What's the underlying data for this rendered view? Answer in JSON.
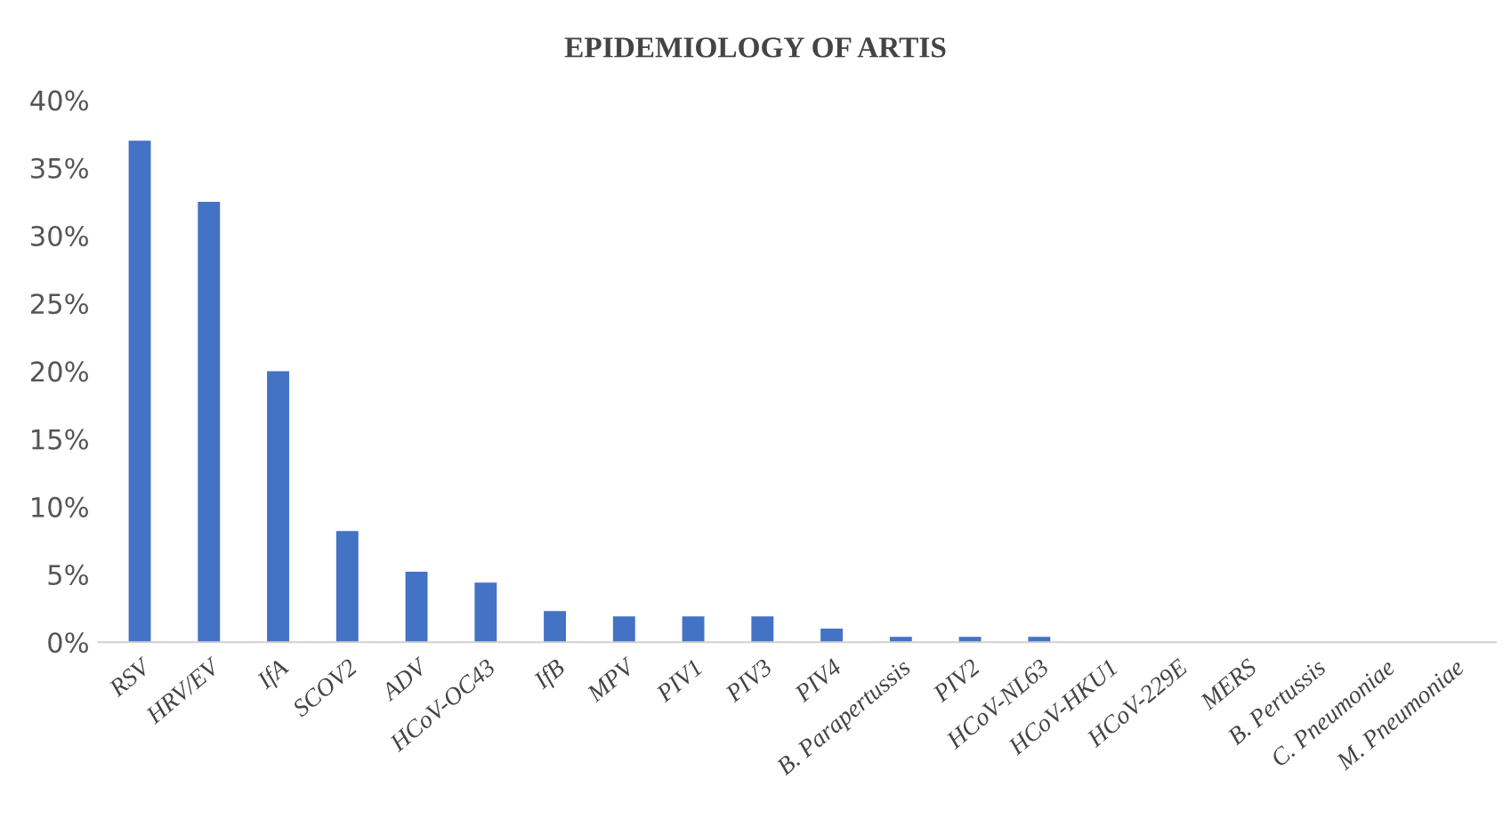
{
  "chart_data": {
    "type": "bar",
    "title": "EPIDEMIOLOGY OF ARTIS",
    "categories": [
      "RSV",
      "HRV/EV",
      "IfA",
      "SCOV2",
      "ADV",
      "HCoV-OC43",
      "IfB",
      "MPV",
      "PIV1",
      "PIV3",
      "PIV4",
      "B. Parapertussis",
      "PIV2",
      "HCoV-NL63",
      "HCoV-HKU1",
      "HCoV-229E",
      "MERS",
      "B. Pertussis",
      "C. Pneumoniae",
      "M. Pneumoniae"
    ],
    "values": [
      37.0,
      32.5,
      20.0,
      8.2,
      5.2,
      4.4,
      2.3,
      1.9,
      1.9,
      1.9,
      1.0,
      0.4,
      0.4,
      0.4,
      0,
      0,
      0,
      0,
      0,
      0
    ],
    "color": "#4472c4",
    "ylim": [
      0,
      40
    ],
    "yticks": [
      {
        "value": 0,
        "label": "0%"
      },
      {
        "value": 5,
        "label": "5%"
      },
      {
        "value": 10,
        "label": "10%"
      },
      {
        "value": 15,
        "label": "15%"
      },
      {
        "value": 20,
        "label": "20%"
      },
      {
        "value": 25,
        "label": "25%"
      },
      {
        "value": 30,
        "label": "30%"
      },
      {
        "value": 35,
        "label": "35%"
      },
      {
        "value": 40,
        "label": "40%"
      }
    ],
    "grid": false,
    "legend": false
  }
}
